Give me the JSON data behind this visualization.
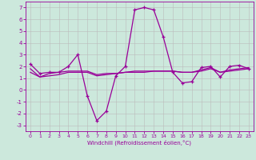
{
  "xlabel": "Windchill (Refroidissement éolien,°C)",
  "x": [
    0,
    1,
    2,
    3,
    4,
    5,
    6,
    7,
    8,
    9,
    10,
    11,
    12,
    13,
    14,
    15,
    16,
    17,
    18,
    19,
    20,
    21,
    22,
    23
  ],
  "line1": [
    2.2,
    1.4,
    1.5,
    1.5,
    2.0,
    3.0,
    -0.5,
    -2.6,
    -1.8,
    1.2,
    2.0,
    6.8,
    7.0,
    6.8,
    4.5,
    1.5,
    0.6,
    0.7,
    1.9,
    2.0,
    1.1,
    2.0,
    2.1,
    1.8
  ],
  "line2": [
    1.5,
    1.1,
    1.2,
    1.3,
    1.5,
    1.5,
    1.5,
    1.2,
    1.3,
    1.4,
    1.5,
    1.5,
    1.5,
    1.6,
    1.6,
    1.6,
    1.5,
    1.5,
    1.6,
    1.8,
    1.5,
    1.6,
    1.7,
    1.8
  ],
  "line3": [
    1.8,
    1.1,
    1.4,
    1.5,
    1.6,
    1.6,
    1.6,
    1.3,
    1.4,
    1.4,
    1.5,
    1.6,
    1.6,
    1.6,
    1.6,
    1.6,
    1.5,
    1.5,
    1.7,
    1.9,
    1.5,
    1.7,
    1.8,
    1.9
  ],
  "color": "#990099",
  "bg_color": "#cce8dc",
  "grid_color": "#bbbbbb",
  "xlim": [
    -0.5,
    23.5
  ],
  "ylim": [
    -3.5,
    7.5
  ],
  "yticks": [
    -3,
    -2,
    -1,
    0,
    1,
    2,
    3,
    4,
    5,
    6,
    7
  ],
  "xticks": [
    0,
    1,
    2,
    3,
    4,
    5,
    6,
    7,
    8,
    9,
    10,
    11,
    12,
    13,
    14,
    15,
    16,
    17,
    18,
    19,
    20,
    21,
    22,
    23
  ]
}
